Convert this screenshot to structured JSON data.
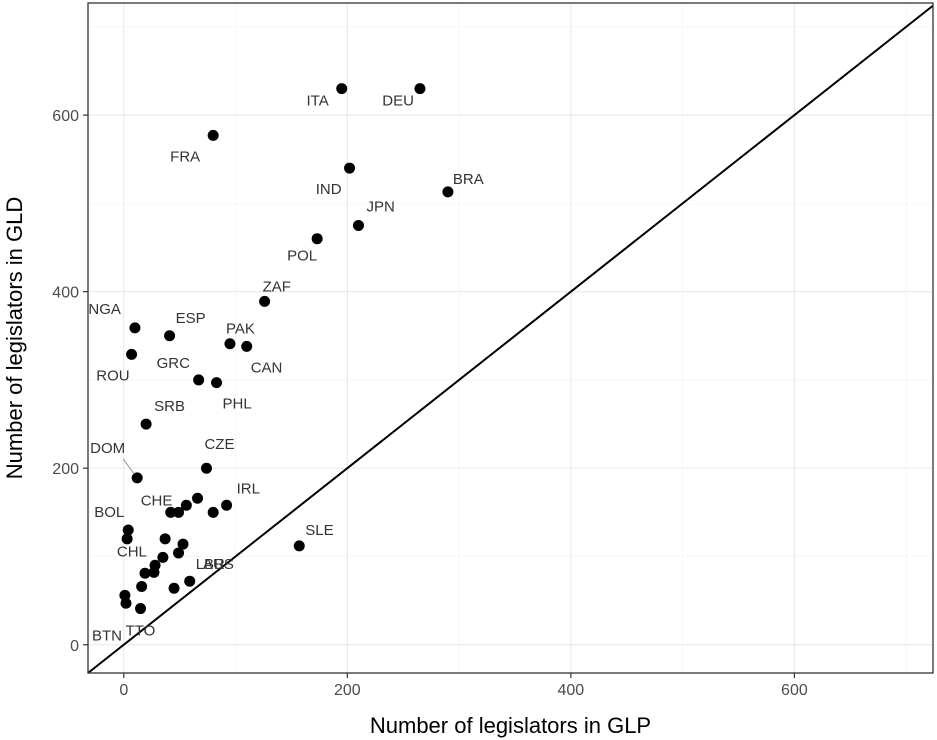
{
  "chart_data": {
    "type": "scatter",
    "title": "",
    "xlabel": "Number of legislators in GLP",
    "ylabel": "Number of legislators in GLD",
    "xlim": [
      -32,
      724
    ],
    "ylim": [
      -32,
      727
    ],
    "x_ticks": [
      0,
      200,
      400,
      600
    ],
    "y_ticks": [
      0,
      200,
      400,
      600
    ],
    "grid": true,
    "reference_line": "y = x",
    "colors": {
      "points": "#000000",
      "panel_border": "#333333",
      "grid_major": "#ebebeb",
      "grid_minor": "#f5f5f5"
    },
    "points": [
      {
        "x": 265,
        "y": 630,
        "label": "DEU"
      },
      {
        "x": 195,
        "y": 630,
        "label": "ITA"
      },
      {
        "x": 80,
        "y": 577,
        "label": "FRA"
      },
      {
        "x": 202,
        "y": 540,
        "label": "IND"
      },
      {
        "x": 290,
        "y": 513,
        "label": "BRA"
      },
      {
        "x": 210,
        "y": 475,
        "label": "JPN"
      },
      {
        "x": 173,
        "y": 460,
        "label": "POL"
      },
      {
        "x": 126,
        "y": 389,
        "label": "ZAF"
      },
      {
        "x": 10,
        "y": 359,
        "label": "NGA"
      },
      {
        "x": 41,
        "y": 350,
        "label": "ESP"
      },
      {
        "x": 95,
        "y": 341,
        "label": "PAK"
      },
      {
        "x": 110,
        "y": 338,
        "label": "CAN"
      },
      {
        "x": 7,
        "y": 329,
        "label": "ROU"
      },
      {
        "x": 67,
        "y": 300,
        "label": "GRC"
      },
      {
        "x": 83,
        "y": 297,
        "label": "PHL"
      },
      {
        "x": 20,
        "y": 250,
        "label": "SRB"
      },
      {
        "x": 74,
        "y": 200,
        "label": "CZE"
      },
      {
        "x": 12,
        "y": 189,
        "label": "DOM"
      },
      {
        "x": 66,
        "y": 166,
        "label": ""
      },
      {
        "x": 56,
        "y": 158,
        "label": "CHE"
      },
      {
        "x": 92,
        "y": 158,
        "label": "IRL"
      },
      {
        "x": 42,
        "y": 150,
        "label": ""
      },
      {
        "x": 49,
        "y": 150,
        "label": ""
      },
      {
        "x": 80,
        "y": 150,
        "label": ""
      },
      {
        "x": 4,
        "y": 130,
        "label": "BOL"
      },
      {
        "x": 3,
        "y": 120,
        "label": ""
      },
      {
        "x": 37,
        "y": 120,
        "label": ""
      },
      {
        "x": 53,
        "y": 114,
        "label": "AUS"
      },
      {
        "x": 157,
        "y": 112,
        "label": "SLE"
      },
      {
        "x": 49,
        "y": 104,
        "label": ""
      },
      {
        "x": 35,
        "y": 99,
        "label": "CHL"
      },
      {
        "x": 28,
        "y": 90,
        "label": ""
      },
      {
        "x": 27,
        "y": 82,
        "label": ""
      },
      {
        "x": 19,
        "y": 81,
        "label": ""
      },
      {
        "x": 59,
        "y": 72,
        "label": "LBR"
      },
      {
        "x": 16,
        "y": 66,
        "label": ""
      },
      {
        "x": 45,
        "y": 64,
        "label": ""
      },
      {
        "x": 1,
        "y": 56,
        "label": ""
      },
      {
        "x": 2,
        "y": 47,
        "label": "BTN"
      },
      {
        "x": 15,
        "y": 41,
        "label": "TTO"
      }
    ]
  }
}
